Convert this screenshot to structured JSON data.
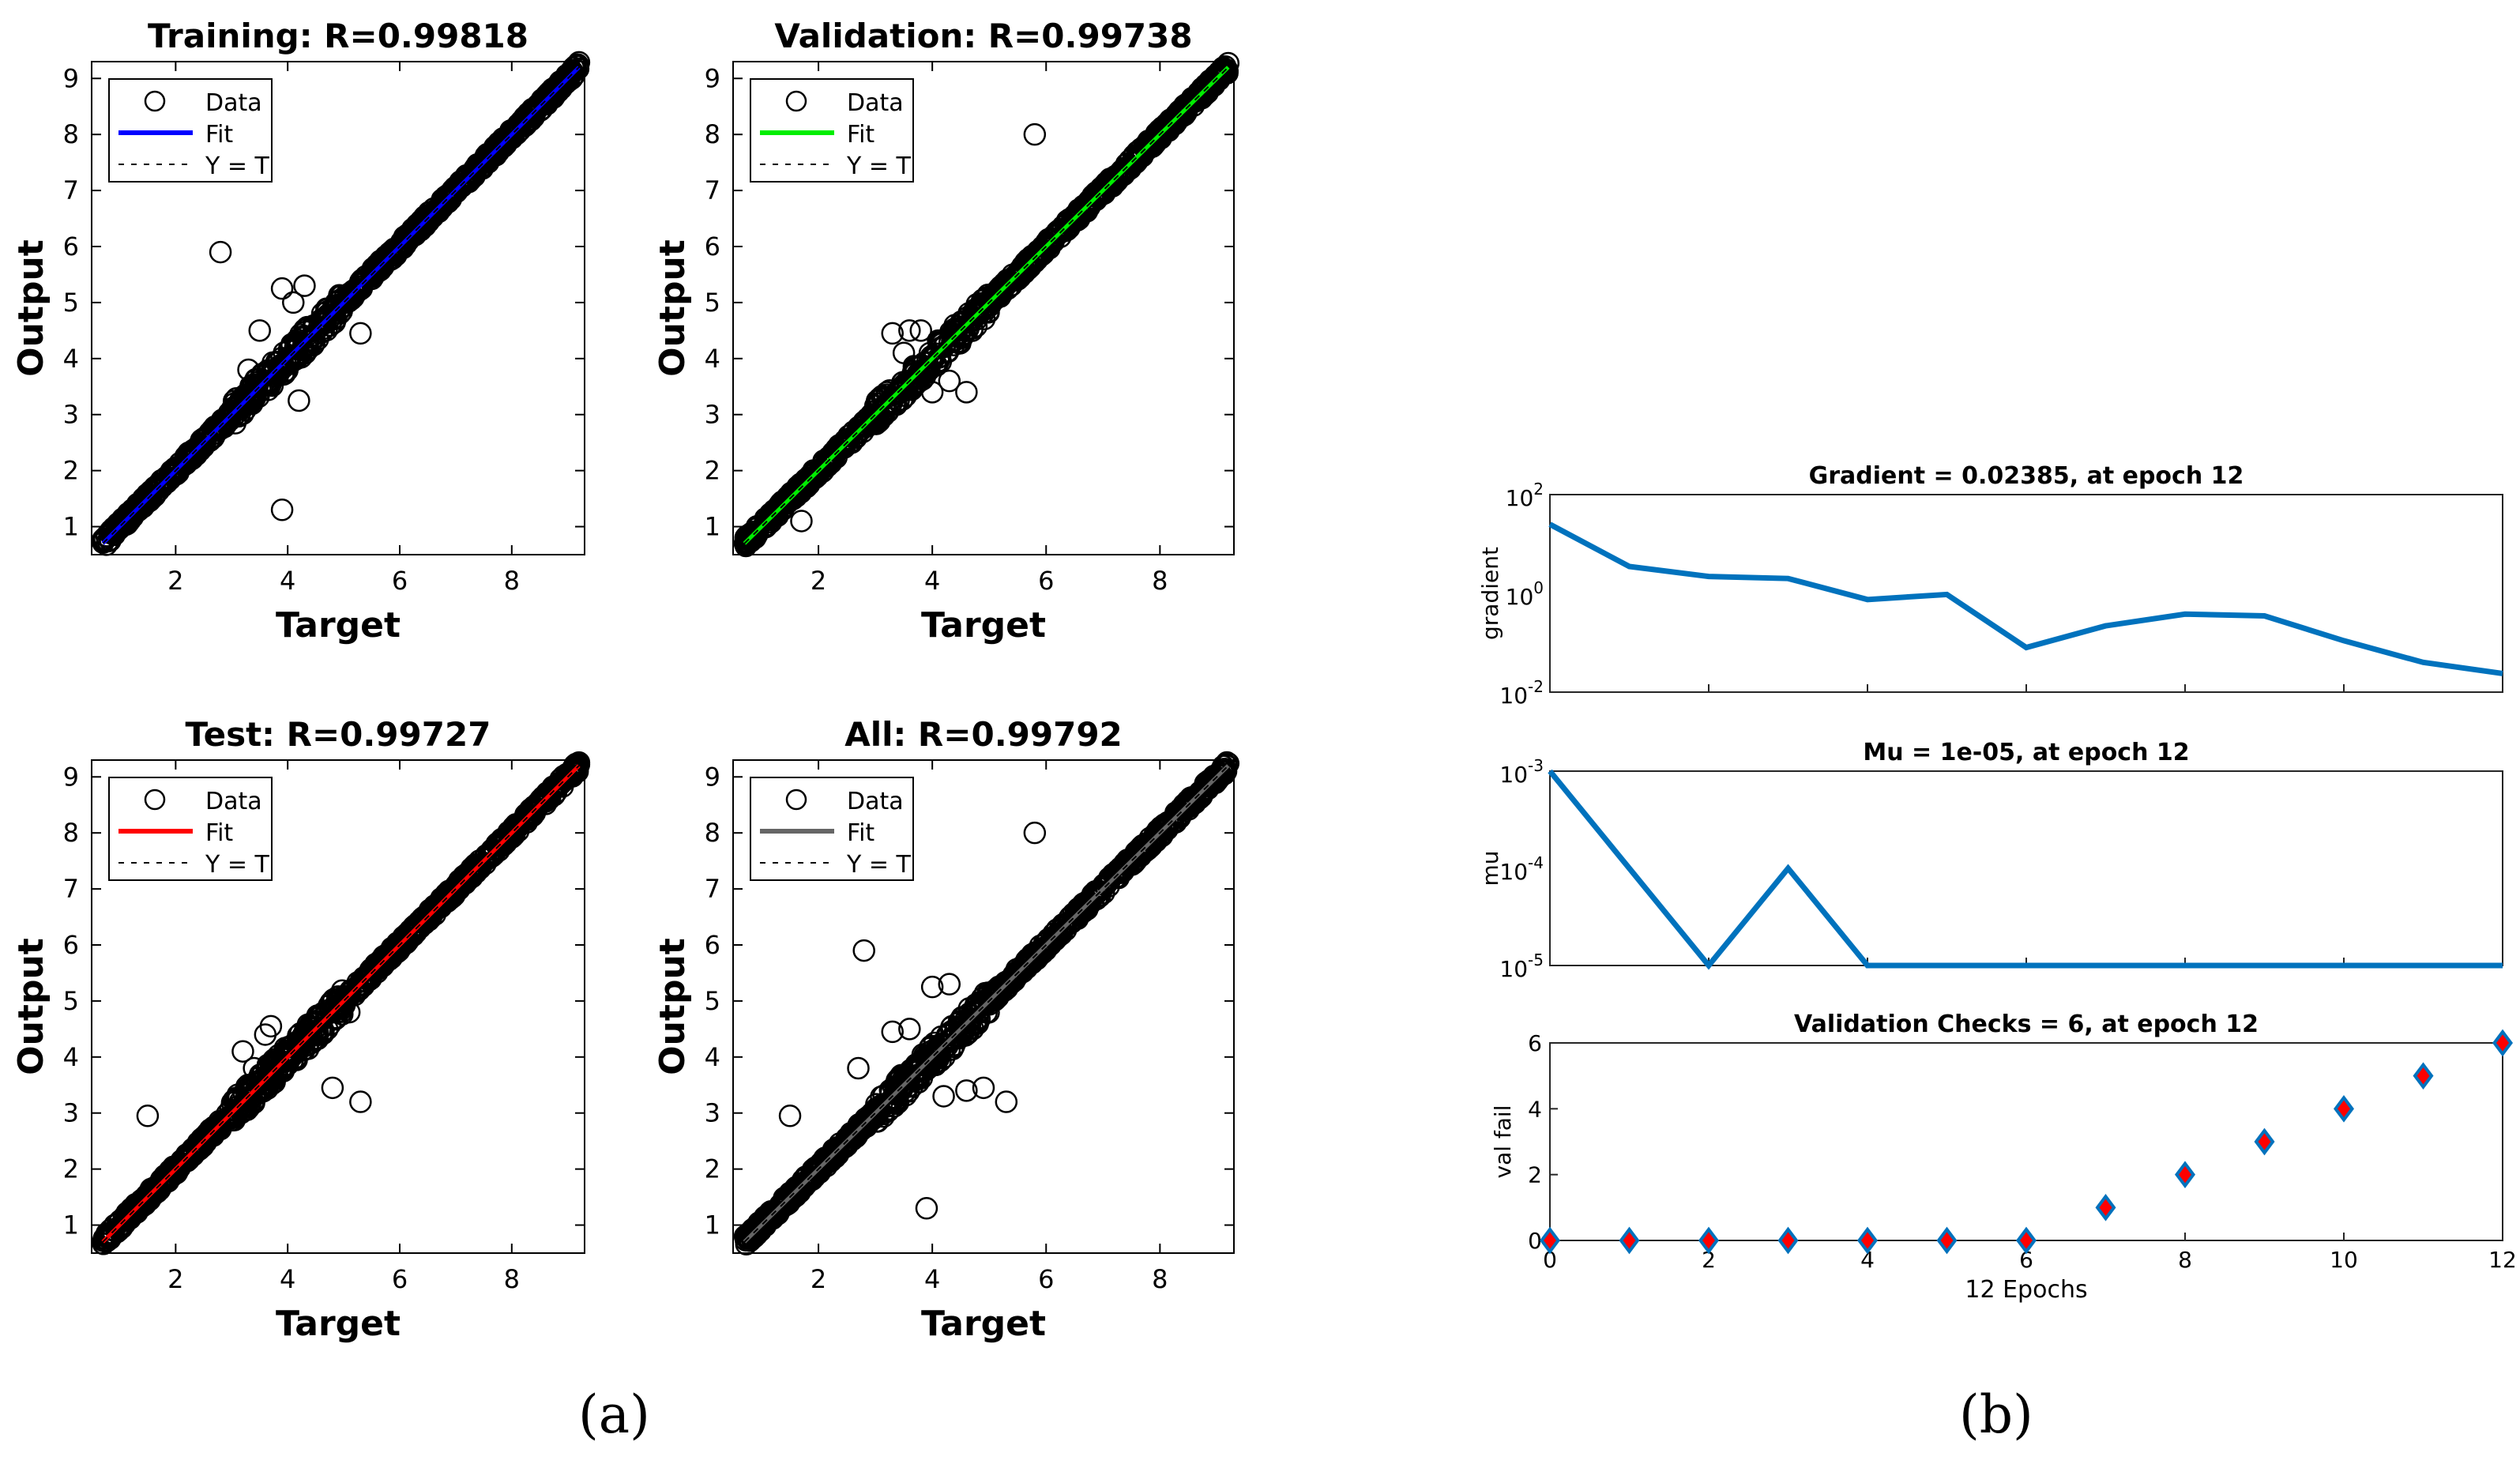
{
  "captions": {
    "a": "(a)",
    "b": "(b)"
  },
  "chart_data": [
    {
      "type": "scatter",
      "panel": "regression-training",
      "title": "Training: R=0.99818",
      "xlabel": "Target",
      "ylabel": "Output",
      "xlim": [
        0.5,
        9.3
      ],
      "ylim": [
        0.5,
        9.3
      ],
      "xticks": [
        "2",
        "4",
        "6",
        "8"
      ],
      "yticks": [
        "1",
        "2",
        "3",
        "4",
        "5",
        "6",
        "7",
        "8",
        "9"
      ],
      "legend": {
        "placement": "top-left",
        "entries": [
          "Data",
          "Fit",
          "Y = T"
        ]
      },
      "fit_color": "#0000ff",
      "fit_line": {
        "from": [
          0.7,
          0.7
        ],
        "to": [
          9.2,
          9.2
        ]
      },
      "outliers": [
        [
          2.8,
          5.9
        ],
        [
          3.9,
          1.3
        ],
        [
          3.5,
          4.5
        ],
        [
          3.9,
          5.25
        ],
        [
          4.3,
          5.3
        ],
        [
          5.3,
          4.45
        ],
        [
          4.2,
          3.25
        ],
        [
          3.6,
          3.6
        ],
        [
          4.1,
          5.0
        ],
        [
          3.3,
          3.8
        ]
      ]
    },
    {
      "type": "scatter",
      "panel": "regression-validation",
      "title": "Validation: R=0.99738",
      "xlabel": "Target",
      "ylabel": "Output",
      "xlim": [
        0.5,
        9.3
      ],
      "ylim": [
        0.5,
        9.3
      ],
      "xticks": [
        "2",
        "4",
        "6",
        "8"
      ],
      "yticks": [
        "1",
        "2",
        "3",
        "4",
        "5",
        "6",
        "7",
        "8",
        "9"
      ],
      "legend": {
        "placement": "top-left",
        "entries": [
          "Data",
          "Fit",
          "Y = T"
        ]
      },
      "fit_color": "#00ee00",
      "fit_line": {
        "from": [
          0.7,
          0.7
        ],
        "to": [
          9.2,
          9.2
        ]
      },
      "outliers": [
        [
          5.8,
          8.0
        ],
        [
          3.3,
          4.45
        ],
        [
          3.6,
          4.5
        ],
        [
          3.8,
          4.5
        ],
        [
          4.0,
          3.4
        ],
        [
          4.6,
          3.4
        ],
        [
          4.3,
          3.6
        ],
        [
          3.5,
          4.1
        ],
        [
          1.7,
          1.1
        ]
      ]
    },
    {
      "type": "scatter",
      "panel": "regression-test",
      "title": "Test: R=0.99727",
      "xlabel": "Target",
      "ylabel": "Output",
      "xlim": [
        0.5,
        9.3
      ],
      "ylim": [
        0.5,
        9.3
      ],
      "xticks": [
        "2",
        "4",
        "6",
        "8"
      ],
      "yticks": [
        "1",
        "2",
        "3",
        "4",
        "5",
        "6",
        "7",
        "8",
        "9"
      ],
      "legend": {
        "placement": "top-left",
        "entries": [
          "Data",
          "Fit",
          "Y = T"
        ]
      },
      "fit_color": "#ff0000",
      "fit_line": {
        "from": [
          0.7,
          0.7
        ],
        "to": [
          9.2,
          9.2
        ]
      },
      "outliers": [
        [
          1.5,
          2.95
        ],
        [
          4.8,
          3.45
        ],
        [
          5.3,
          3.2
        ],
        [
          3.7,
          4.55
        ],
        [
          3.6,
          4.4
        ],
        [
          3.4,
          3.8
        ],
        [
          3.2,
          4.1
        ],
        [
          5.1,
          4.8
        ]
      ]
    },
    {
      "type": "scatter",
      "panel": "regression-all",
      "title": "All: R=0.99792",
      "xlabel": "Target",
      "ylabel": "Output",
      "xlim": [
        0.5,
        9.3
      ],
      "ylim": [
        0.5,
        9.3
      ],
      "xticks": [
        "2",
        "4",
        "6",
        "8"
      ],
      "yticks": [
        "1",
        "2",
        "3",
        "4",
        "5",
        "6",
        "7",
        "8",
        "9"
      ],
      "legend": {
        "placement": "top-left",
        "entries": [
          "Data",
          "Fit",
          "Y = T"
        ]
      },
      "fit_color": "#666666",
      "fit_line": {
        "from": [
          0.7,
          0.7
        ],
        "to": [
          9.2,
          9.2
        ]
      },
      "outliers": [
        [
          5.8,
          8.0
        ],
        [
          2.8,
          5.9
        ],
        [
          3.9,
          1.3
        ],
        [
          1.5,
          2.95
        ],
        [
          5.3,
          3.2
        ],
        [
          4.3,
          5.3
        ],
        [
          4.0,
          5.25
        ],
        [
          3.6,
          4.5
        ],
        [
          4.6,
          3.4
        ],
        [
          4.9,
          3.45
        ],
        [
          3.3,
          4.45
        ],
        [
          2.7,
          3.8
        ],
        [
          4.2,
          3.3
        ],
        [
          3.6,
          3.6
        ]
      ]
    },
    {
      "type": "line",
      "panel": "gradient",
      "title": "Gradient = 0.02385, at epoch 12",
      "ylabel": "gradient",
      "yscale": "log",
      "ylim": [
        0.01,
        100
      ],
      "xlim": [
        0,
        12
      ],
      "ytick_labels": [
        {
          "base": "10",
          "exp": "2"
        },
        {
          "base": "10",
          "exp": "0"
        },
        {
          "base": "10",
          "exp": "-2"
        }
      ],
      "color": "#0072bd",
      "x": [
        0,
        1,
        2,
        3,
        4,
        5,
        6,
        7,
        8,
        9,
        10,
        11,
        12
      ],
      "y": [
        25,
        3.5,
        2.2,
        2.0,
        0.75,
        0.95,
        0.08,
        0.22,
        0.38,
        0.35,
        0.11,
        0.04,
        0.02385
      ]
    },
    {
      "type": "line",
      "panel": "mu",
      "title": "Mu = 1e-05, at epoch 12",
      "ylabel": "mu",
      "yscale": "log",
      "ylim": [
        1e-05,
        0.001
      ],
      "xlim": [
        0,
        12
      ],
      "ytick_labels": [
        {
          "base": "10",
          "exp": "-3"
        },
        {
          "base": "10",
          "exp": "-4"
        },
        {
          "base": "10",
          "exp": "-5"
        }
      ],
      "color": "#0072bd",
      "x": [
        0,
        1,
        2,
        3,
        4,
        5,
        6,
        7,
        8,
        9,
        10,
        11,
        12
      ],
      "y": [
        0.001,
        0.0001,
        1e-05,
        0.0001,
        1e-05,
        1e-05,
        1e-05,
        1e-05,
        1e-05,
        1e-05,
        1e-05,
        1e-05,
        1e-05
      ]
    },
    {
      "type": "scatter",
      "panel": "validation-checks",
      "title": "Validation Checks = 6, at epoch 12",
      "xlabel": "12 Epochs",
      "ylabel": "val fail",
      "xlim": [
        0,
        12
      ],
      "ylim": [
        0,
        6
      ],
      "xticks": [
        "0",
        "2",
        "4",
        "6",
        "8",
        "10",
        "12"
      ],
      "yticks": [
        "0",
        "2",
        "4",
        "6"
      ],
      "marker": "diamond",
      "marker_edge": "#0072bd",
      "marker_fill": "#ff0000",
      "x": [
        0,
        1,
        2,
        3,
        4,
        5,
        6,
        7,
        8,
        9,
        10,
        11,
        12
      ],
      "y": [
        0,
        0,
        0,
        0,
        0,
        0,
        0,
        1,
        2,
        3,
        4,
        5,
        6
      ]
    }
  ]
}
